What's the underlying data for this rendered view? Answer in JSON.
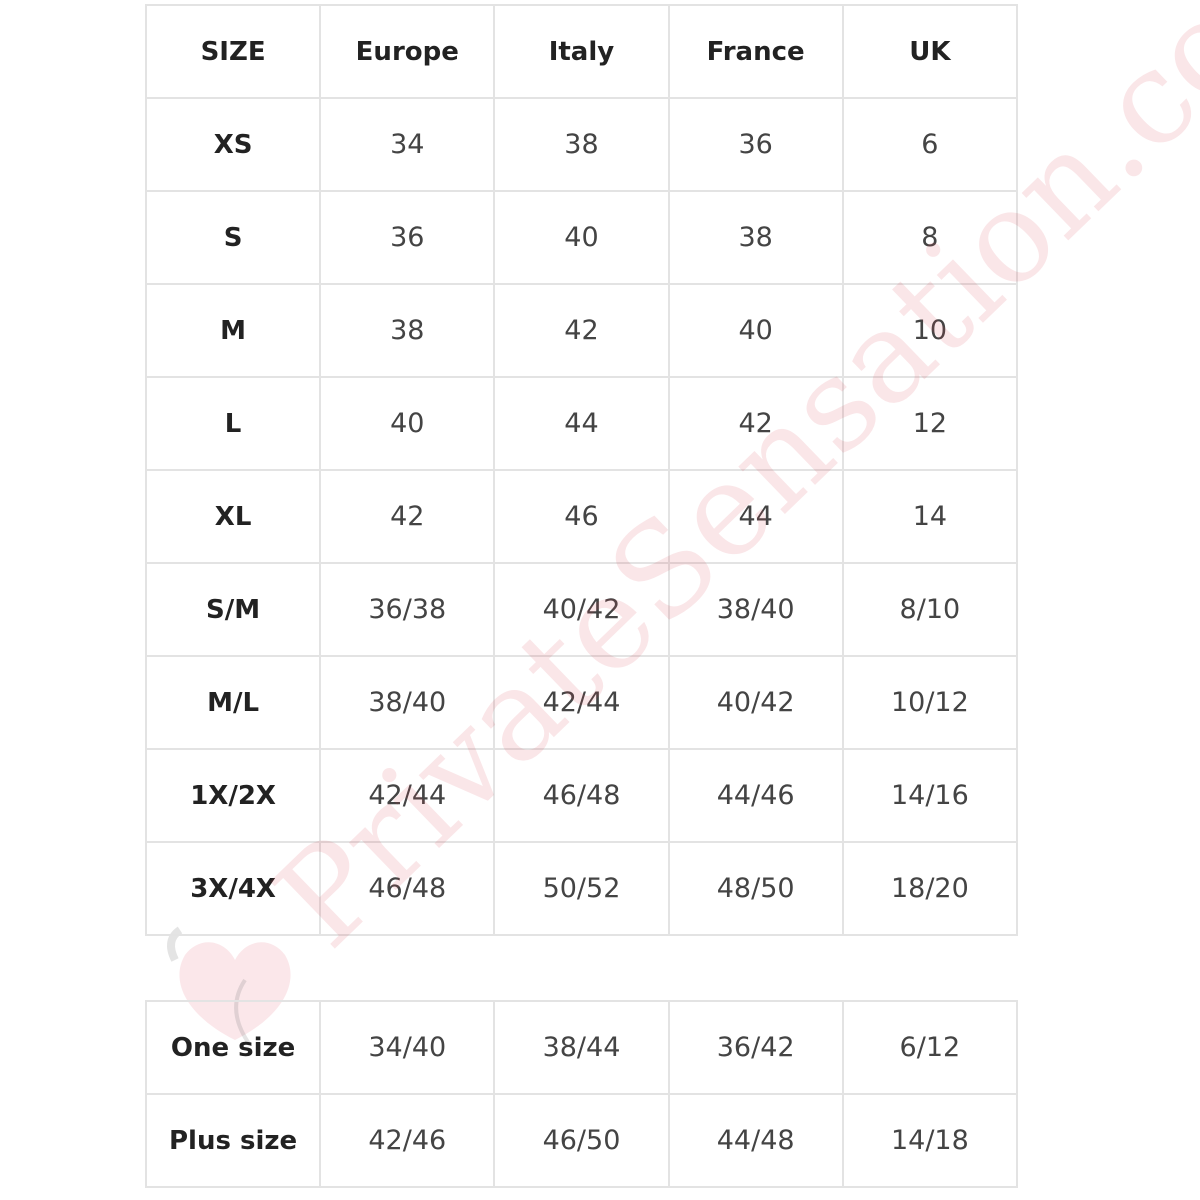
{
  "size_table": {
    "headers": [
      "SIZE",
      "Europe",
      "Italy",
      "France",
      "UK"
    ],
    "rows": [
      [
        "XS",
        "34",
        "38",
        "36",
        "6"
      ],
      [
        "S",
        "36",
        "40",
        "38",
        "8"
      ],
      [
        "M",
        "38",
        "42",
        "40",
        "10"
      ],
      [
        "L",
        "40",
        "44",
        "42",
        "12"
      ],
      [
        "XL",
        "42",
        "46",
        "44",
        "14"
      ],
      [
        "S/M",
        "36/38",
        "40/42",
        "38/40",
        "8/10"
      ],
      [
        "M/L",
        "38/40",
        "42/44",
        "40/42",
        "10/12"
      ],
      [
        "1X/2X",
        "42/44",
        "46/48",
        "44/46",
        "14/16"
      ],
      [
        "3X/4X",
        "46/48",
        "50/52",
        "48/50",
        "18/20"
      ]
    ]
  },
  "extra_table": {
    "rows": [
      [
        "One size",
        "34/40",
        "38/44",
        "36/42",
        "6/12"
      ],
      [
        "Plus size",
        "42/46",
        "46/50",
        "44/48",
        "14/18"
      ]
    ]
  },
  "watermark": {
    "text": "PrivateSensation.com",
    "color": "#dc3c50"
  },
  "colors": {
    "border": "#e3e3e3",
    "header_text": "#222222",
    "cell_text": "#444444"
  }
}
